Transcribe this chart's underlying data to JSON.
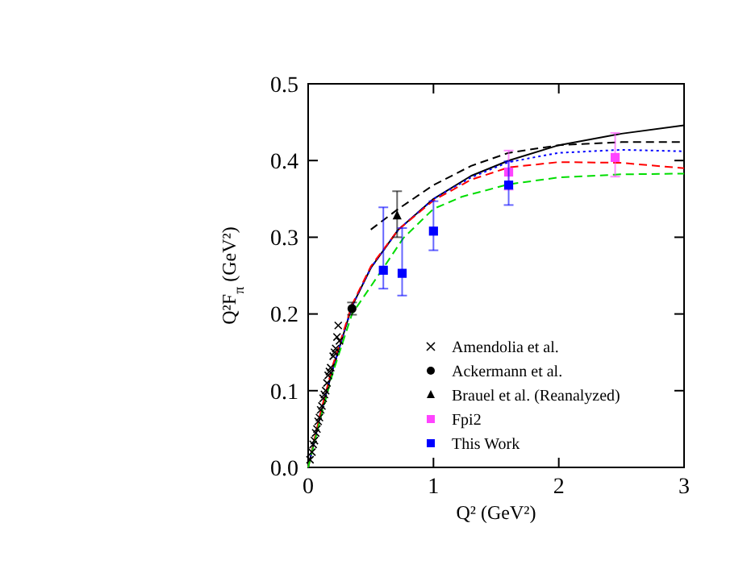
{
  "chart_data": {
    "type": "scatter",
    "xlabel": "Q² (GeV²)",
    "ylabel": "Q²F$_{π}$ (GeV²)",
    "xlim": [
      0,
      3
    ],
    "ylim": [
      0,
      0.5
    ],
    "xticks": [
      0,
      1,
      2,
      3
    ],
    "yticks": [
      {
        "value": 0,
        "label": "0.0"
      },
      {
        "value": 0.1,
        "label": "0.1"
      },
      {
        "value": 0.2,
        "label": "0.2"
      },
      {
        "value": 0.3,
        "label": "0.3"
      },
      {
        "value": 0.4,
        "label": "0.4"
      },
      {
        "value": 0.5,
        "label": "0.5"
      }
    ],
    "legend": "bottom right",
    "grid": false,
    "series": [
      {
        "type": "line",
        "color": "#000000",
        "line_style": "solid",
        "x": [
          0,
          0.1,
          0.2,
          0.35,
          0.5,
          0.72,
          1.0,
          1.3,
          1.6,
          2.0,
          2.5,
          3.0
        ],
        "values": [
          0,
          0.07,
          0.13,
          0.21,
          0.26,
          0.31,
          0.35,
          0.38,
          0.4,
          0.42,
          0.435,
          0.446
        ]
      },
      {
        "type": "line",
        "color": "#000000",
        "line_style": "dashed",
        "x": [
          0.5,
          0.72,
          1.0,
          1.3,
          1.6,
          2.0,
          2.5,
          3.0
        ],
        "values": [
          0.31,
          0.337,
          0.368,
          0.393,
          0.41,
          0.42,
          0.424,
          0.424
        ]
      },
      {
        "type": "line",
        "color": "#0000ff",
        "line_style": "dotted",
        "x": [
          0,
          0.1,
          0.2,
          0.35,
          0.5,
          0.72,
          1.0,
          1.3,
          1.6,
          2.0,
          2.5,
          3.0
        ],
        "values": [
          0,
          0.07,
          0.13,
          0.21,
          0.26,
          0.31,
          0.35,
          0.378,
          0.398,
          0.41,
          0.414,
          0.412
        ]
      },
      {
        "type": "line",
        "color": "#ff0000",
        "line_style": "dashed",
        "x": [
          0,
          0.1,
          0.2,
          0.35,
          0.5,
          0.72,
          1.0,
          1.3,
          1.6,
          2.0,
          2.5,
          3.0
        ],
        "values": [
          0,
          0.072,
          0.135,
          0.212,
          0.262,
          0.31,
          0.348,
          0.375,
          0.391,
          0.398,
          0.397,
          0.39
        ]
      },
      {
        "type": "line",
        "color": "#00dd00",
        "line_style": "dashed",
        "x": [
          0,
          0.1,
          0.2,
          0.35,
          0.6,
          0.76,
          1.0,
          1.23,
          1.6,
          2.0,
          2.5,
          3.0
        ],
        "values": [
          0,
          0.065,
          0.125,
          0.2,
          0.26,
          0.299,
          0.337,
          0.353,
          0.369,
          0.378,
          0.382,
          0.383
        ]
      },
      {
        "name": "Amendolia et al.",
        "marker": "cross",
        "color": "#000000",
        "x": [
          0.015,
          0.03,
          0.04,
          0.05,
          0.06,
          0.07,
          0.08,
          0.09,
          0.1,
          0.11,
          0.12,
          0.13,
          0.14,
          0.15,
          0.16,
          0.17,
          0.18,
          0.2,
          0.21,
          0.22,
          0.23,
          0.24,
          0.25
        ],
        "values": [
          0.01,
          0.02,
          0.03,
          0.035,
          0.045,
          0.05,
          0.06,
          0.065,
          0.075,
          0.08,
          0.09,
          0.095,
          0.1,
          0.11,
          0.12,
          0.125,
          0.13,
          0.145,
          0.15,
          0.155,
          0.17,
          0.185,
          0.165
        ]
      },
      {
        "name": "Ackermann et al.",
        "marker": "circle",
        "color": "#000000",
        "x": [
          0.35
        ],
        "values": [
          0.207
        ],
        "errors": [
          0.008
        ]
      },
      {
        "name": "Brauel et al. (Reanalyzed)",
        "marker": "triangle",
        "color": "#000000",
        "x": [
          0.71
        ],
        "values": [
          0.328
        ],
        "errors": [
          [
            0.3,
            0.36
          ]
        ]
      },
      {
        "name": "Fpi2",
        "marker": "square",
        "color": "#ff44ff",
        "x": [
          1.6,
          2.45
        ],
        "values": [
          0.385,
          0.404
        ],
        "errors": [
          [
            0.362,
            0.413
          ],
          [
            0.379,
            0.436
          ]
        ]
      },
      {
        "name": "This Work",
        "marker": "square",
        "color": "#0000ff",
        "x": [
          0.6,
          0.75,
          1.0,
          1.6
        ],
        "values": [
          0.257,
          0.253,
          0.308,
          0.368
        ],
        "errors": [
          [
            0.233,
            0.339
          ],
          [
            0.224,
            0.312
          ],
          [
            0.283,
            0.347
          ],
          [
            0.342,
            0.399
          ]
        ]
      }
    ]
  }
}
